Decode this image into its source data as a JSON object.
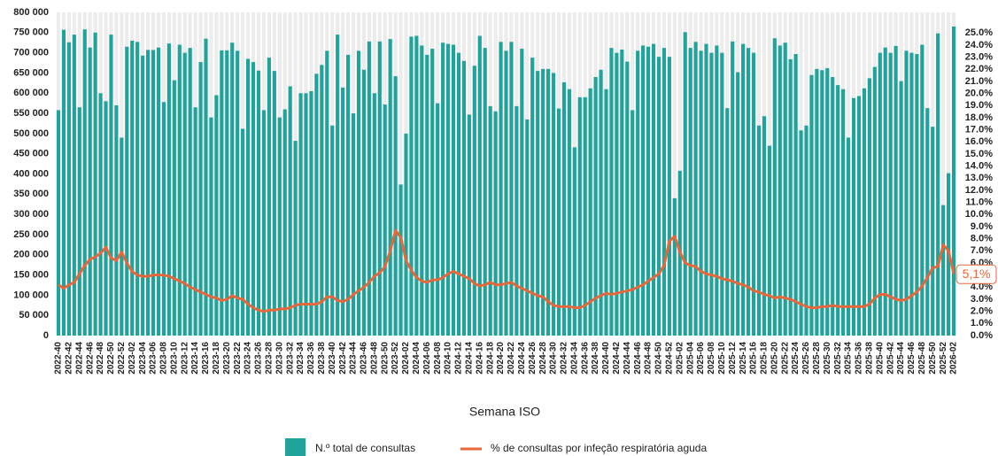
{
  "chart_data": {
    "type": "bar",
    "x_label": "Semana ISO",
    "end_label": "5,1%",
    "categories": [
      "2022-40",
      null,
      "2022-42",
      null,
      "2022-44",
      null,
      "2022-46",
      null,
      "2022-48",
      null,
      "2022-50",
      null,
      "2022-52",
      null,
      "2023-02",
      null,
      "2023-04",
      null,
      "2023-06",
      null,
      "2023-08",
      null,
      "2023-10",
      null,
      "2023-12",
      null,
      "2023-14",
      null,
      "2023-16",
      null,
      "2023-18",
      null,
      "2023-20",
      null,
      "2023-22",
      null,
      "2023-24",
      null,
      "2023-26",
      null,
      "2023-28",
      null,
      "2023-30",
      null,
      "2023-32",
      null,
      "2023-34",
      null,
      "2023-36",
      null,
      "2023-38",
      null,
      "2023-40",
      null,
      "2023-42",
      null,
      "2023-44",
      null,
      "2023-46",
      null,
      "2023-48",
      null,
      "2023-50",
      null,
      "2023-52",
      null,
      "2024-02",
      null,
      "2024-04",
      null,
      "2024-06",
      null,
      "2024-08",
      null,
      "2024-10",
      null,
      "2024-12",
      null,
      "2024-14",
      null,
      "2024-16",
      null,
      "2024-18",
      null,
      "2024-20",
      null,
      "2024-22",
      null,
      "2024-24",
      null,
      "2024-26",
      null,
      "2024-28",
      null,
      "2024-30",
      null,
      "2024-32",
      null,
      "2024-34",
      null,
      "2024-36",
      null,
      "2024-38",
      null,
      "2024-40",
      null,
      "2024-42",
      null,
      "2024-44",
      null,
      "2024-46",
      null,
      "2024-48",
      null,
      "2024-50",
      null,
      "2024-52",
      null,
      "2025-02",
      null,
      "2025-04",
      null,
      "2025-06",
      null,
      "2025-08",
      null,
      "2025-10",
      null,
      "2025-12",
      null,
      "2025-14",
      null,
      "2025-16",
      null,
      "2025-18",
      null,
      "2025-20",
      null,
      "2025-22",
      null,
      "2025-24",
      null,
      "2025-26",
      null,
      "2025-28",
      null,
      "2025-30",
      null,
      "2025-32",
      null,
      "2025-34",
      null,
      "2025-36",
      null,
      "2025-38",
      null,
      "2025-40",
      null,
      "2025-42",
      null,
      "2025-44",
      null,
      "2025-46",
      null,
      "2025-48",
      null,
      "2025-50",
      null,
      "2025-52",
      null,
      "2026-02"
    ],
    "series": [
      {
        "name": "N.º total de consultas",
        "type": "bar",
        "color": "#1fa39b",
        "values": [
          558000,
          757000,
          726000,
          745000,
          565000,
          758000,
          713000,
          750000,
          600000,
          580000,
          745000,
          570000,
          490000,
          715000,
          730000,
          727000,
          693000,
          707000,
          707000,
          713000,
          578000,
          723000,
          632000,
          720000,
          700000,
          712000,
          565000,
          677000,
          735000,
          540000,
          595000,
          706000,
          706000,
          725000,
          705000,
          512000,
          685000,
          677000,
          656000,
          558000,
          688000,
          655000,
          540000,
          560000,
          617000,
          482000,
          600000,
          600000,
          605000,
          648000,
          670000,
          705000,
          520000,
          745000,
          614000,
          695000,
          550000,
          705000,
          658000,
          728000,
          600000,
          728000,
          572000,
          734000,
          642000,
          374000,
          500000,
          740000,
          742000,
          718000,
          695000,
          710000,
          575000,
          725000,
          722000,
          720000,
          700000,
          680000,
          547000,
          668000,
          742000,
          712000,
          568000,
          555000,
          727000,
          705000,
          727000,
          568000,
          710000,
          535000,
          688000,
          655000,
          660000,
          660000,
          650000,
          562000,
          627000,
          610000,
          466000,
          590000,
          590000,
          612000,
          640000,
          658000,
          610000,
          712000,
          700000,
          708000,
          678000,
          558000,
          705000,
          718000,
          715000,
          722000,
          690000,
          712000,
          690000,
          340000,
          408000,
          751000,
          712000,
          727000,
          705000,
          722000,
          700000,
          718000,
          700000,
          563000,
          728000,
          652000,
          722000,
          712000,
          700000,
          520000,
          543000,
          470000,
          736000,
          718000,
          725000,
          684000,
          697000,
          508000,
          520000,
          645000,
          660000,
          657000,
          662000,
          640000,
          620000,
          610000,
          490000,
          588000,
          593000,
          612000,
          637000,
          665000,
          700000,
          713000,
          700000,
          717000,
          630000,
          705000,
          700000,
          697000,
          720000,
          563000,
          517000,
          748000,
          323000,
          402000,
          765000
        ]
      },
      {
        "name": "% de consultas por infeção respiratória aguda",
        "type": "line",
        "axis": "y2",
        "color": "#e8673a",
        "values": [
          4.2,
          3.9,
          4.2,
          4.4,
          5.1,
          5.8,
          6.3,
          6.5,
          6.8,
          7.3,
          6.4,
          6.2,
          6.9,
          6.0,
          5.3,
          5.0,
          4.9,
          4.9,
          5.0,
          5.0,
          5.0,
          4.9,
          4.7,
          4.5,
          4.3,
          4.0,
          3.8,
          3.6,
          3.4,
          3.2,
          3.1,
          2.9,
          3.0,
          3.3,
          3.1,
          3.0,
          2.6,
          2.3,
          2.1,
          2.0,
          2.1,
          2.1,
          2.2,
          2.2,
          2.3,
          2.5,
          2.6,
          2.6,
          2.6,
          2.6,
          2.8,
          3.2,
          3.2,
          2.9,
          2.8,
          3.0,
          3.4,
          3.7,
          4.0,
          4.4,
          4.9,
          5.2,
          5.7,
          7.0,
          8.7,
          8.1,
          6.2,
          5.4,
          4.8,
          4.5,
          4.4,
          4.6,
          4.6,
          4.8,
          5.1,
          5.3,
          5.1,
          4.9,
          4.7,
          4.3,
          4.1,
          4.2,
          4.4,
          4.2,
          4.2,
          4.3,
          4.4,
          4.1,
          3.9,
          3.7,
          3.5,
          3.3,
          3.2,
          2.8,
          2.5,
          2.4,
          2.4,
          2.4,
          2.3,
          2.3,
          2.5,
          2.8,
          3.1,
          3.3,
          3.5,
          3.4,
          3.5,
          3.6,
          3.7,
          3.8,
          4.0,
          4.2,
          4.5,
          4.8,
          5.1,
          5.8,
          7.8,
          8.2,
          6.9,
          6.0,
          5.8,
          5.7,
          5.3,
          5.1,
          5.0,
          4.9,
          4.7,
          4.6,
          4.5,
          4.3,
          4.2,
          4.0,
          3.7,
          3.6,
          3.4,
          3.3,
          3.1,
          3.2,
          3.1,
          3.0,
          2.8,
          2.6,
          2.4,
          2.3,
          2.3,
          2.4,
          2.4,
          2.5,
          2.4,
          2.4,
          2.4,
          2.4,
          2.4,
          2.4,
          2.6,
          3.1,
          3.4,
          3.4,
          3.2,
          3.0,
          2.9,
          3.0,
          3.3,
          3.6,
          4.1,
          4.8,
          5.6,
          5.7,
          7.5,
          7.0,
          5.1
        ]
      }
    ],
    "ylim": [
      0,
      800000
    ],
    "yticks": [
      {
        "value": 0,
        "label": "0"
      },
      {
        "value": 50000,
        "label": "50 000"
      },
      {
        "value": 100000,
        "label": "100 000"
      },
      {
        "value": 150000,
        "label": "150 000"
      },
      {
        "value": 200000,
        "label": "200 000"
      },
      {
        "value": 250000,
        "label": "250 000"
      },
      {
        "value": 300000,
        "label": "300 000"
      },
      {
        "value": 350000,
        "label": "350 000"
      },
      {
        "value": 400000,
        "label": "400 000"
      },
      {
        "value": 450000,
        "label": "450 000"
      },
      {
        "value": 500000,
        "label": "500 000"
      },
      {
        "value": 550000,
        "label": "550 000"
      },
      {
        "value": 600000,
        "label": "600 000"
      },
      {
        "value": 650000,
        "label": "650 000"
      },
      {
        "value": 700000,
        "label": "700 000"
      },
      {
        "value": 750000,
        "label": "750 000"
      },
      {
        "value": 800000,
        "label": "800 000"
      }
    ],
    "y2lim": [
      0,
      26.7
    ],
    "y2ticks": [
      {
        "value": 0,
        "label": "0.0%"
      },
      {
        "value": 1,
        "label": "1.0%"
      },
      {
        "value": 2,
        "label": "2.0%"
      },
      {
        "value": 3,
        "label": "3.0%"
      },
      {
        "value": 4,
        "label": "4.0%"
      },
      {
        "value": 5,
        "label": "5.0%"
      },
      {
        "value": 6,
        "label": "6.0%"
      },
      {
        "value": 7,
        "label": "7.0%"
      },
      {
        "value": 8,
        "label": "8.0%"
      },
      {
        "value": 9,
        "label": "9.0%"
      },
      {
        "value": 10,
        "label": "10.0%"
      },
      {
        "value": 11,
        "label": "11.0%"
      },
      {
        "value": 12,
        "label": "12.0%"
      },
      {
        "value": 13,
        "label": "13.0%"
      },
      {
        "value": 14,
        "label": "14.0%"
      },
      {
        "value": 15,
        "label": "15.0%"
      },
      {
        "value": 16,
        "label": "16.0%"
      },
      {
        "value": 17,
        "label": "17.0%"
      },
      {
        "value": 18,
        "label": "18.0%"
      },
      {
        "value": 19,
        "label": "19.0%"
      },
      {
        "value": 20,
        "label": "20.0%"
      },
      {
        "value": 21,
        "label": "21.0%"
      },
      {
        "value": 22,
        "label": "22.0%"
      },
      {
        "value": 23,
        "label": "23.0%"
      },
      {
        "value": 24,
        "label": "24.0%"
      },
      {
        "value": 25,
        "label": "25.0%"
      }
    ],
    "legend": "bottom"
  }
}
